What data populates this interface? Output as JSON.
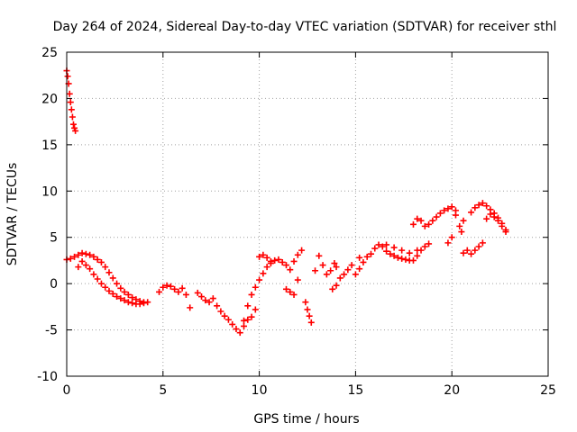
{
  "chart_data": {
    "type": "scatter",
    "title": "Day 264 of 2024, Sidereal Day-to-day VTEC variation (SDTVAR) for receiver sthl",
    "xlabel": "GPS time / hours",
    "ylabel": "SDTVAR / TECUs",
    "xlim": [
      0,
      25
    ],
    "ylim": [
      -10,
      25
    ],
    "xticks": [
      0,
      5,
      10,
      15,
      20,
      25
    ],
    "yticks": [
      -10,
      -5,
      0,
      5,
      10,
      15,
      20,
      25
    ],
    "xtick_labels": [
      "0",
      "5",
      "10",
      "15",
      "20",
      "25"
    ],
    "ytick_labels": [
      "-10",
      "-5",
      "0",
      "5",
      "10",
      "15",
      "20",
      "25"
    ],
    "grid": true,
    "marker": "+",
    "marker_color": "#ff0000",
    "series": [
      {
        "name": "SDTVAR",
        "points": [
          [
            0.0,
            23.0
          ],
          [
            0.05,
            22.4
          ],
          [
            0.1,
            21.6
          ],
          [
            0.15,
            20.5
          ],
          [
            0.2,
            19.6
          ],
          [
            0.25,
            18.8
          ],
          [
            0.3,
            18.0
          ],
          [
            0.35,
            17.2
          ],
          [
            0.4,
            16.8
          ],
          [
            0.45,
            16.5
          ],
          [
            0.0,
            2.6
          ],
          [
            0.2,
            2.7
          ],
          [
            0.4,
            2.9
          ],
          [
            0.6,
            3.1
          ],
          [
            0.8,
            3.3
          ],
          [
            1.0,
            3.2
          ],
          [
            1.2,
            3.1
          ],
          [
            1.4,
            2.9
          ],
          [
            1.6,
            2.6
          ],
          [
            1.8,
            2.3
          ],
          [
            2.0,
            1.8
          ],
          [
            2.2,
            1.2
          ],
          [
            2.4,
            0.6
          ],
          [
            2.6,
            0.0
          ],
          [
            2.8,
            -0.5
          ],
          [
            3.0,
            -0.9
          ],
          [
            3.2,
            -1.2
          ],
          [
            3.4,
            -1.5
          ],
          [
            3.6,
            -1.7
          ],
          [
            3.8,
            -1.9
          ],
          [
            4.0,
            -2.0
          ],
          [
            4.2,
            -2.0
          ],
          [
            0.6,
            1.8
          ],
          [
            0.8,
            2.4
          ],
          [
            1.0,
            2.0
          ],
          [
            1.2,
            1.6
          ],
          [
            1.4,
            1.0
          ],
          [
            1.6,
            0.5
          ],
          [
            1.8,
            0.0
          ],
          [
            2.0,
            -0.4
          ],
          [
            2.2,
            -0.8
          ],
          [
            2.4,
            -1.1
          ],
          [
            2.6,
            -1.4
          ],
          [
            2.8,
            -1.6
          ],
          [
            3.0,
            -1.8
          ],
          [
            3.2,
            -2.0
          ],
          [
            3.4,
            -2.1
          ],
          [
            3.6,
            -2.2
          ],
          [
            3.8,
            -2.2
          ],
          [
            4.0,
            -2.1
          ],
          [
            4.8,
            -0.9
          ],
          [
            5.0,
            -0.4
          ],
          [
            5.2,
            -0.2
          ],
          [
            5.4,
            -0.3
          ],
          [
            5.6,
            -0.6
          ],
          [
            5.8,
            -0.9
          ],
          [
            6.0,
            -0.5
          ],
          [
            6.2,
            -1.2
          ],
          [
            6.4,
            -2.6
          ],
          [
            6.8,
            -1.0
          ],
          [
            7.0,
            -1.4
          ],
          [
            7.2,
            -1.8
          ],
          [
            7.4,
            -2.0
          ],
          [
            7.6,
            -1.6
          ],
          [
            7.8,
            -2.4
          ],
          [
            8.0,
            -3.0
          ],
          [
            8.2,
            -3.5
          ],
          [
            8.4,
            -3.9
          ],
          [
            8.6,
            -4.4
          ],
          [
            8.8,
            -4.9
          ],
          [
            9.0,
            -5.3
          ],
          [
            9.2,
            -4.6
          ],
          [
            9.4,
            -3.9
          ],
          [
            9.6,
            -3.6
          ],
          [
            9.8,
            -2.8
          ],
          [
            9.2,
            -4.0
          ],
          [
            9.4,
            -2.4
          ],
          [
            9.6,
            -1.2
          ],
          [
            9.8,
            -0.4
          ],
          [
            10.0,
            0.4
          ],
          [
            10.2,
            1.1
          ],
          [
            10.4,
            1.8
          ],
          [
            10.6,
            2.2
          ],
          [
            10.8,
            2.5
          ],
          [
            11.0,
            2.6
          ],
          [
            10.0,
            2.9
          ],
          [
            10.2,
            3.1
          ],
          [
            10.4,
            2.8
          ],
          [
            10.6,
            2.4
          ],
          [
            11.2,
            2.3
          ],
          [
            11.4,
            2.0
          ],
          [
            11.6,
            1.5
          ],
          [
            11.8,
            2.4
          ],
          [
            12.0,
            3.1
          ],
          [
            12.2,
            3.6
          ],
          [
            11.4,
            -0.6
          ],
          [
            11.6,
            -0.9
          ],
          [
            11.8,
            -1.2
          ],
          [
            12.0,
            0.4
          ],
          [
            12.4,
            -2.0
          ],
          [
            12.5,
            -2.8
          ],
          [
            12.6,
            -3.5
          ],
          [
            12.7,
            -4.2
          ],
          [
            12.9,
            1.4
          ],
          [
            13.1,
            3.0
          ],
          [
            13.3,
            2.0
          ],
          [
            13.5,
            1.0
          ],
          [
            13.7,
            1.4
          ],
          [
            13.9,
            2.2
          ],
          [
            14.0,
            1.8
          ],
          [
            13.8,
            -0.6
          ],
          [
            14.0,
            -0.2
          ],
          [
            14.2,
            0.6
          ],
          [
            14.4,
            1.0
          ],
          [
            14.6,
            1.5
          ],
          [
            14.8,
            2.0
          ],
          [
            15.0,
            1.0
          ],
          [
            15.2,
            1.6
          ],
          [
            15.4,
            2.3
          ],
          [
            15.6,
            2.9
          ],
          [
            15.8,
            3.2
          ],
          [
            15.2,
            2.8
          ],
          [
            16.0,
            3.8
          ],
          [
            16.2,
            4.2
          ],
          [
            16.4,
            4.0
          ],
          [
            16.6,
            3.5
          ],
          [
            16.8,
            3.2
          ],
          [
            17.0,
            3.0
          ],
          [
            17.2,
            2.8
          ],
          [
            17.4,
            2.7
          ],
          [
            17.6,
            2.6
          ],
          [
            17.8,
            2.5
          ],
          [
            18.0,
            2.5
          ],
          [
            18.2,
            3.0
          ],
          [
            18.4,
            3.6
          ],
          [
            18.6,
            4.0
          ],
          [
            18.8,
            4.3
          ],
          [
            16.6,
            4.2
          ],
          [
            17.0,
            3.9
          ],
          [
            17.4,
            3.6
          ],
          [
            17.8,
            3.3
          ],
          [
            18.2,
            3.6
          ],
          [
            18.0,
            6.4
          ],
          [
            18.2,
            7.0
          ],
          [
            18.4,
            6.8
          ],
          [
            18.6,
            6.2
          ],
          [
            18.8,
            6.4
          ],
          [
            19.0,
            6.8
          ],
          [
            19.2,
            7.2
          ],
          [
            19.4,
            7.6
          ],
          [
            19.6,
            7.9
          ],
          [
            19.8,
            8.1
          ],
          [
            20.0,
            8.3
          ],
          [
            20.2,
            7.9
          ],
          [
            20.4,
            6.2
          ],
          [
            20.6,
            6.8
          ],
          [
            20.2,
            7.4
          ],
          [
            20.5,
            5.6
          ],
          [
            19.8,
            4.4
          ],
          [
            20.0,
            5.0
          ],
          [
            20.6,
            3.3
          ],
          [
            20.8,
            3.6
          ],
          [
            21.0,
            3.2
          ],
          [
            21.2,
            3.6
          ],
          [
            21.4,
            4.0
          ],
          [
            21.6,
            4.4
          ],
          [
            21.0,
            7.7
          ],
          [
            21.2,
            8.2
          ],
          [
            21.4,
            8.5
          ],
          [
            21.6,
            8.7
          ],
          [
            21.8,
            8.4
          ],
          [
            22.0,
            8.0
          ],
          [
            22.2,
            7.6
          ],
          [
            22.4,
            7.1
          ],
          [
            22.6,
            6.5
          ],
          [
            22.8,
            5.8
          ],
          [
            21.8,
            7.0
          ],
          [
            22.0,
            7.5
          ],
          [
            22.2,
            7.2
          ],
          [
            22.4,
            6.8
          ],
          [
            22.6,
            6.2
          ],
          [
            22.8,
            5.6
          ]
        ]
      }
    ]
  }
}
